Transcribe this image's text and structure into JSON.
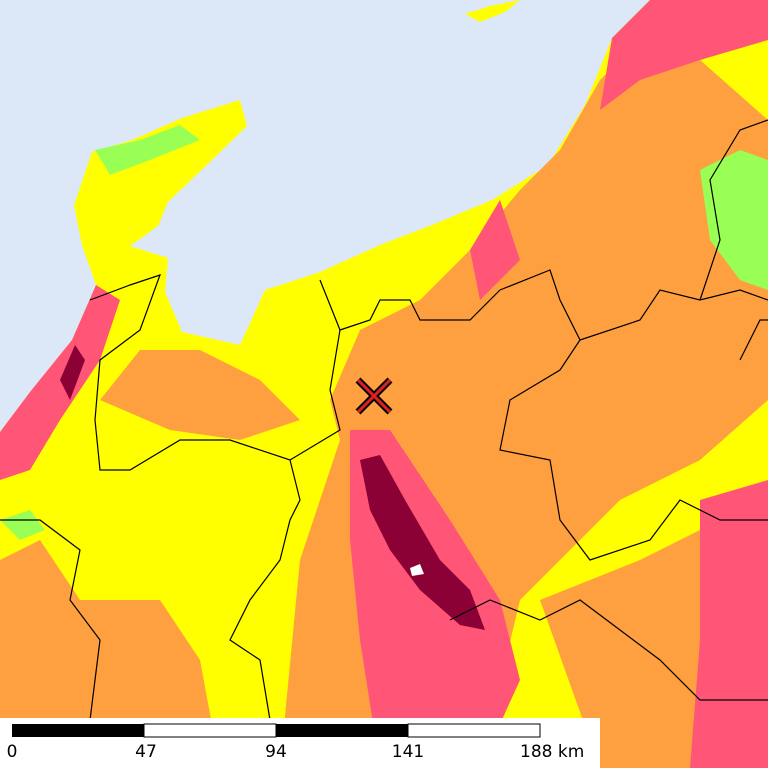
{
  "scale_bar": {
    "labels": [
      "0",
      "47",
      "94",
      "141",
      "188 km"
    ]
  }
}
